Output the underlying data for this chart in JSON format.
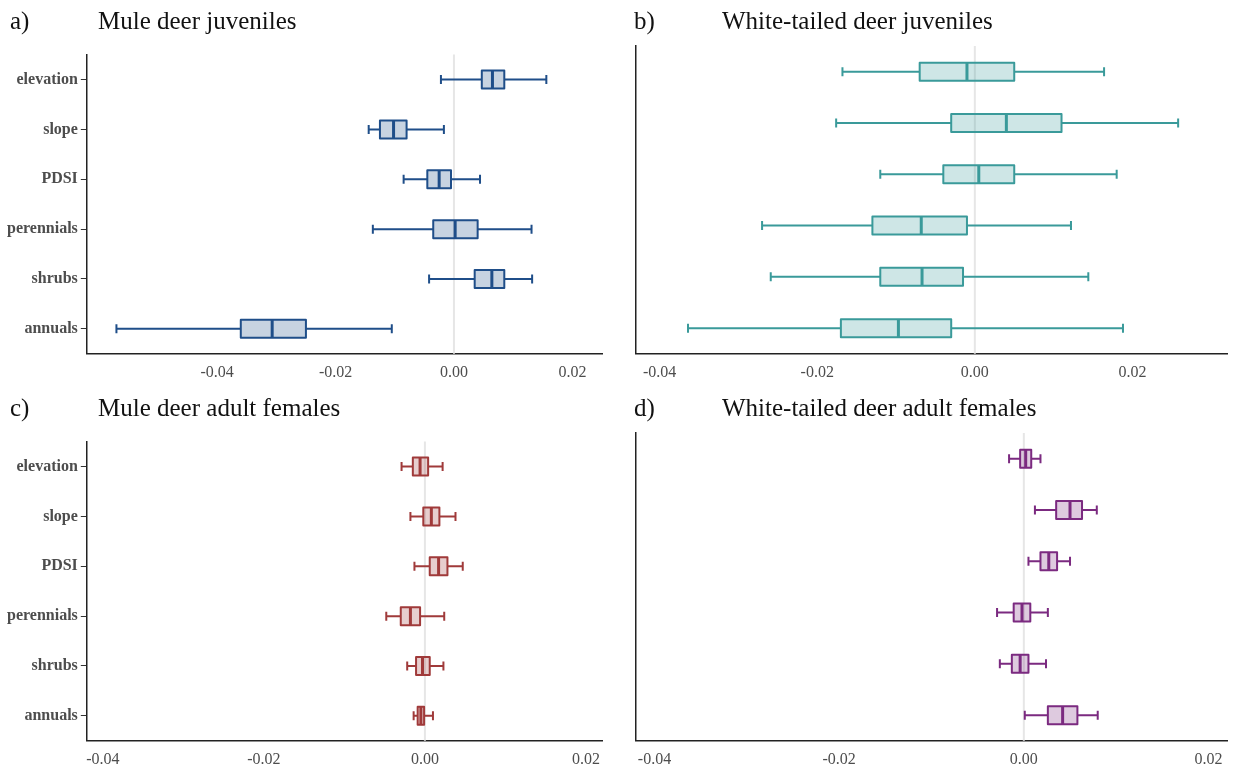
{
  "chart_data": [
    {
      "type": "box",
      "title": "Mule deer juveniles",
      "annotations": [
        "a)"
      ],
      "orientation": "horizontal",
      "categories": [
        "elevation",
        "slope",
        "PDSI",
        "perennials",
        "shrubs",
        "annuals"
      ],
      "color": "#1f4e89",
      "xlim": [
        -0.062,
        0.025
      ],
      "xticks": [
        {
          "value": -0.04,
          "label": "-0.04"
        },
        {
          "value": -0.02,
          "label": "-0.02"
        },
        {
          "value": 0,
          "label": "0.00"
        },
        {
          "value": 0.02,
          "label": "0.02"
        }
      ],
      "grid": false,
      "ref_lines": [
        {
          "axis": "x",
          "value": 0,
          "color": "#e6e6e6"
        }
      ],
      "boxes": [
        {
          "low": -0.0022,
          "q1": 0.0047,
          "median": 0.0065,
          "q3": 0.0085,
          "high": 0.0156
        },
        {
          "low": -0.0144,
          "q1": -0.0125,
          "median": -0.0102,
          "q3": -0.008,
          "high": -0.0017
        },
        {
          "low": -0.0085,
          "q1": -0.0045,
          "median": -0.0025,
          "q3": -0.0005,
          "high": 0.0044
        },
        {
          "low": -0.0137,
          "q1": -0.0035,
          "median": 0.0002,
          "q3": 0.004,
          "high": 0.0131
        },
        {
          "low": -0.0042,
          "q1": 0.0035,
          "median": 0.0064,
          "q3": 0.0085,
          "high": 0.0132
        },
        {
          "low": -0.057,
          "q1": -0.036,
          "median": -0.0307,
          "q3": -0.025,
          "high": -0.0105
        }
      ]
    },
    {
      "type": "box",
      "title": "White-tailed deer juveniles",
      "annotations": [
        "b)"
      ],
      "orientation": "horizontal",
      "categories": [
        null,
        null,
        null,
        null,
        null,
        null
      ],
      "color": "#3a9a9a",
      "tick_labels": "x",
      "xlim": [
        -0.043,
        0.032
      ],
      "xticks": [
        {
          "value": -0.04,
          "label": "-0.04"
        },
        {
          "value": -0.02,
          "label": "-0.02"
        },
        {
          "value": 0,
          "label": "0.00"
        },
        {
          "value": 0.02,
          "label": "0.02"
        }
      ],
      "grid": false,
      "ref_lines": [
        {
          "axis": "x",
          "value": 0,
          "color": "#e6e6e6"
        }
      ],
      "boxes": [
        {
          "low": -0.0168,
          "q1": -0.007,
          "median": -0.001,
          "q3": 0.005,
          "high": 0.0164
        },
        {
          "low": -0.0176,
          "q1": -0.003,
          "median": 0.004,
          "q3": 0.011,
          "high": 0.0258
        },
        {
          "low": -0.012,
          "q1": -0.004,
          "median": 0.0005,
          "q3": 0.005,
          "high": 0.018
        },
        {
          "low": -0.027,
          "q1": -0.013,
          "median": -0.0068,
          "q3": -0.001,
          "high": 0.0122
        },
        {
          "low": -0.0259,
          "q1": -0.012,
          "median": -0.0067,
          "q3": -0.0015,
          "high": 0.0144
        },
        {
          "low": -0.0364,
          "q1": -0.017,
          "median": -0.0097,
          "q3": -0.003,
          "high": 0.0188
        }
      ]
    },
    {
      "type": "box",
      "title": "Mule deer adult females",
      "annotations": [
        "c)"
      ],
      "orientation": "horizontal",
      "categories": [
        "elevation",
        "slope",
        "PDSI",
        "perennials",
        "shrubs",
        "annuals"
      ],
      "color": "#a03a3a",
      "xlim": [
        -0.042,
        0.022
      ],
      "xticks": [
        {
          "value": -0.04,
          "label": "-0.04"
        },
        {
          "value": -0.02,
          "label": "-0.02"
        },
        {
          "value": 0,
          "label": "0.00"
        },
        {
          "value": 0.02,
          "label": "0.02"
        }
      ],
      "grid": false,
      "ref_lines": [
        {
          "axis": "x",
          "value": 0,
          "color": "#e6e6e6"
        }
      ],
      "boxes": [
        {
          "low": -0.0029,
          "q1": -0.0015,
          "median": -0.0006,
          "q3": 0.0004,
          "high": 0.0022
        },
        {
          "low": -0.0018,
          "q1": -0.0002,
          "median": 0.0008,
          "q3": 0.0018,
          "high": 0.0038
        },
        {
          "low": -0.0013,
          "q1": 0.0006,
          "median": 0.0017,
          "q3": 0.0028,
          "high": 0.0047
        },
        {
          "low": -0.0048,
          "q1": -0.003,
          "median": -0.0018,
          "q3": -0.0006,
          "high": 0.0024
        },
        {
          "low": -0.0022,
          "q1": -0.0011,
          "median": -0.0003,
          "q3": 0.0006,
          "high": 0.0023
        },
        {
          "low": -0.0014,
          "q1": -0.0009,
          "median": -0.0005,
          "q3": -0.0001,
          "high": 0.001
        }
      ]
    },
    {
      "type": "box",
      "title": "White-tailed deer adult females",
      "annotations": [
        "d)"
      ],
      "orientation": "horizontal",
      "categories": [
        null,
        null,
        null,
        null,
        null,
        null
      ],
      "color": "#7b2a80",
      "tick_labels": "x",
      "xlim": [
        -0.042,
        0.022
      ],
      "xticks": [
        {
          "value": -0.04,
          "label": "-0.04"
        },
        {
          "value": -0.02,
          "label": "-0.02"
        },
        {
          "value": 0,
          "label": "0.00"
        },
        {
          "value": 0.02,
          "label": "0.02"
        }
      ],
      "grid": false,
      "ref_lines": [
        {
          "axis": "x",
          "value": 0,
          "color": "#e6e6e6"
        }
      ],
      "boxes": [
        {
          "low": -0.0016,
          "q1": -0.0004,
          "median": 0.0002,
          "q3": 0.0008,
          "high": 0.0018
        },
        {
          "low": 0.0012,
          "q1": 0.0035,
          "median": 0.005,
          "q3": 0.0063,
          "high": 0.0079
        },
        {
          "low": 0.0005,
          "q1": 0.0018,
          "median": 0.0027,
          "q3": 0.0036,
          "high": 0.005
        },
        {
          "low": -0.0029,
          "q1": -0.0011,
          "median": -0.0002,
          "q3": 0.0007,
          "high": 0.0026
        },
        {
          "low": -0.0026,
          "q1": -0.0013,
          "median": -0.0004,
          "q3": 0.0005,
          "high": 0.0024
        },
        {
          "low": 0.0001,
          "q1": 0.0026,
          "median": 0.0042,
          "q3": 0.0058,
          "high": 0.008
        }
      ]
    }
  ]
}
